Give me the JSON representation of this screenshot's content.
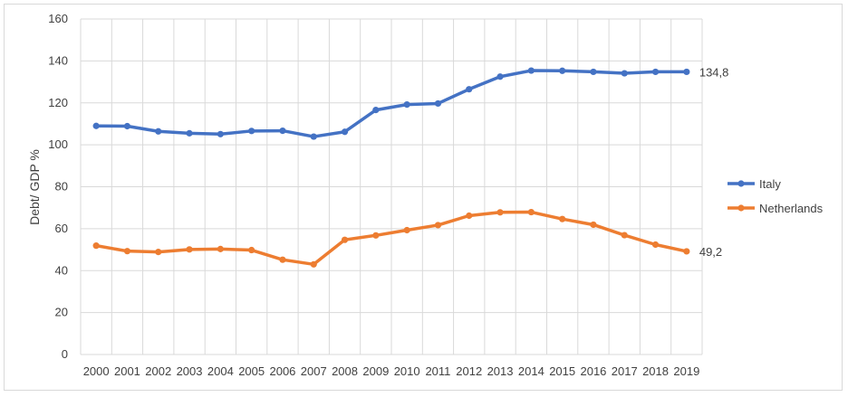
{
  "chart_data": {
    "type": "line",
    "title": "",
    "xlabel": "",
    "ylabel": "Debt/ GDP %",
    "ylim": [
      0,
      160
    ],
    "yticks": [
      0,
      20,
      40,
      60,
      80,
      100,
      120,
      140,
      160
    ],
    "x": [
      "2000",
      "2001",
      "2002",
      "2003",
      "2004",
      "2005",
      "2006",
      "2007",
      "2008",
      "2009",
      "2010",
      "2011",
      "2012",
      "2013",
      "2014",
      "2015",
      "2016",
      "2017",
      "2018",
      "2019"
    ],
    "grid": true,
    "legend_position": "right",
    "series": [
      {
        "name": "Italy",
        "color": "#4472c4",
        "values": [
          109,
          108.9,
          106.4,
          105.5,
          105.1,
          106.6,
          106.7,
          103.9,
          106.2,
          116.6,
          119.2,
          119.7,
          126.5,
          132.5,
          135.4,
          135.3,
          134.8,
          134.1,
          134.8,
          134.8
        ],
        "end_label": "134,8"
      },
      {
        "name": "Netherlands",
        "color": "#ed7d31",
        "values": [
          51.9,
          49.3,
          48.9,
          50.1,
          50.3,
          49.8,
          45.2,
          43,
          54.7,
          56.8,
          59.3,
          61.7,
          66.2,
          67.8,
          67.9,
          64.6,
          61.9,
          56.9,
          52.4,
          49.2
        ],
        "end_label": "49,2"
      }
    ]
  }
}
